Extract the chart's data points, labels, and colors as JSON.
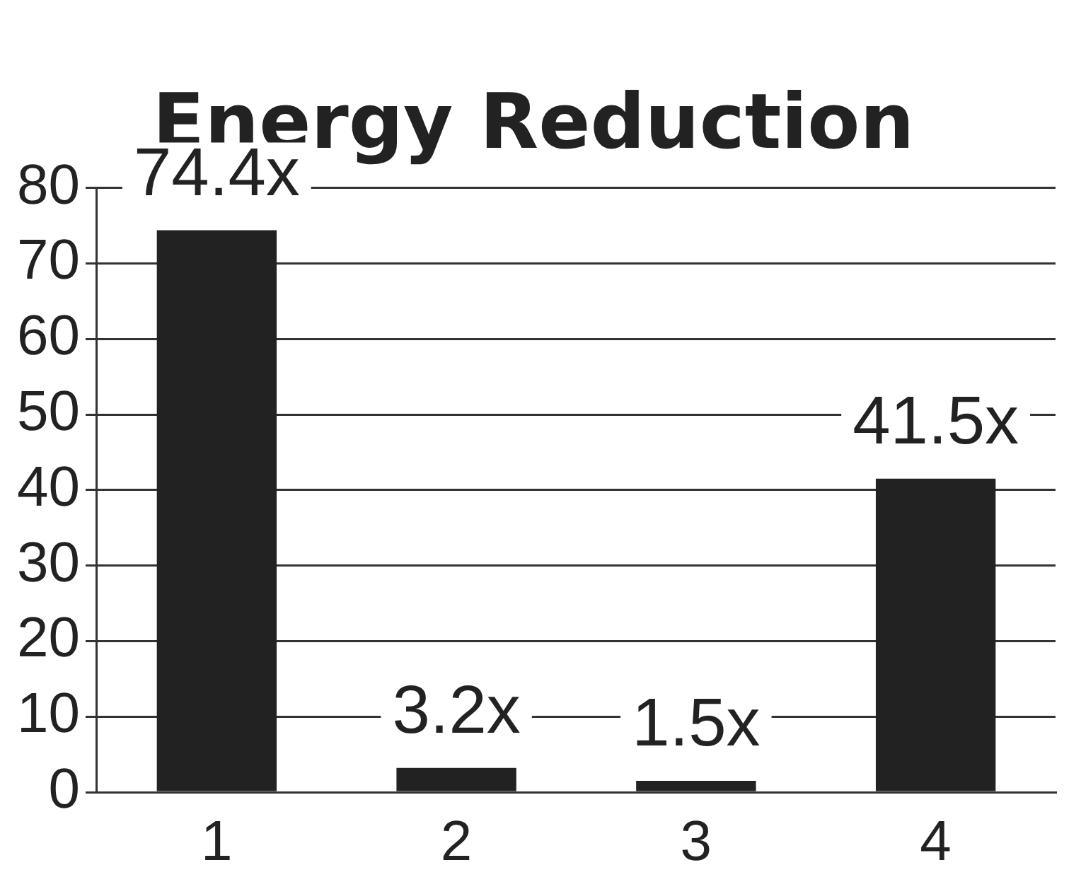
{
  "chart_data": {
    "type": "bar",
    "title": "Energy Reduction",
    "categories": [
      "1",
      "2",
      "3",
      "4"
    ],
    "values": [
      74.4,
      3.2,
      1.5,
      41.5
    ],
    "value_labels": [
      "74.4x",
      "3.2x",
      "1.5x",
      "41.5x"
    ],
    "color": "#222222",
    "ylim": [
      0,
      80
    ],
    "yticks": [
      0,
      10,
      20,
      30,
      40,
      50,
      60,
      70,
      80
    ],
    "grid": "y",
    "legend": false
  }
}
